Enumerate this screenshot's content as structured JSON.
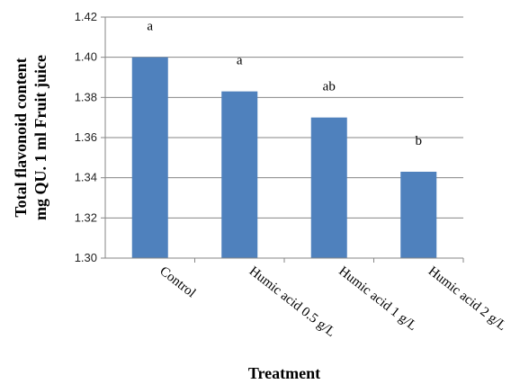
{
  "chart_data": {
    "type": "bar",
    "categories": [
      "Control",
      "Humic acid 0.5 g/L",
      "Humic acid 1 g/L",
      "Humic acid 2 g/L"
    ],
    "values": [
      1.4,
      1.383,
      1.37,
      1.343
    ],
    "significance_letters": [
      "a",
      "a",
      "ab",
      "b"
    ],
    "xlabel": "Treatment",
    "ylabel_lines": [
      "Total flavonoid content",
      "mg QU. 1 ml Fruit juice"
    ],
    "ylim": [
      1.3,
      1.42
    ],
    "yticks": [
      "1.30",
      "1.32",
      "1.34",
      "1.36",
      "1.38",
      "1.40",
      "1.42"
    ],
    "grid": true,
    "bar_color": "#4f81bd"
  }
}
